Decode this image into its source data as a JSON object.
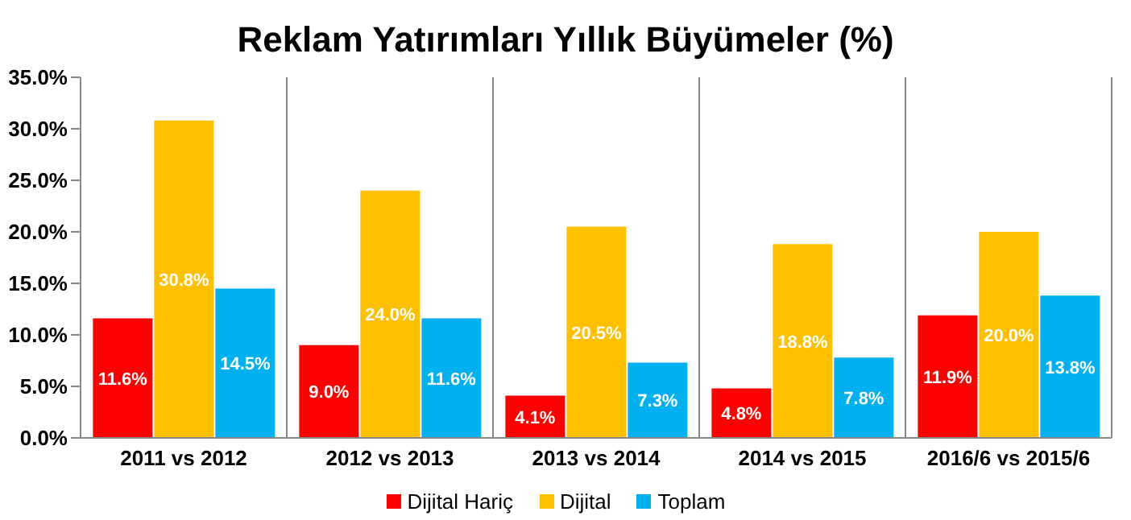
{
  "chart_data": {
    "type": "bar",
    "title": "Reklam Yatırımları Yıllık Büyümeler (%)",
    "categories": [
      "2011 vs 2012",
      "2012 vs 2013",
      "2013 vs 2014",
      "2014 vs 2015",
      "2016/6 vs 2015/6"
    ],
    "series": [
      {
        "name": "Dijital Hariç",
        "color": "#ff0000",
        "values": [
          11.6,
          9.0,
          4.1,
          4.8,
          11.9
        ],
        "value_labels": [
          "11.6%",
          "9.0%",
          "4.1%",
          "4.8%",
          "11.9%"
        ]
      },
      {
        "name": "Dijital",
        "color": "#ffc000",
        "values": [
          30.8,
          24.0,
          20.5,
          18.8,
          20.0
        ],
        "value_labels": [
          "30.8%",
          "24.0%",
          "20.5%",
          "18.8%",
          "20.0%"
        ]
      },
      {
        "name": "Toplam",
        "color": "#00b0f0",
        "values": [
          14.5,
          11.6,
          7.3,
          7.8,
          13.8
        ],
        "value_labels": [
          "14.5%",
          "11.6%",
          "7.3%",
          "7.8%",
          "13.8%"
        ]
      }
    ],
    "ylim": [
      0,
      35
    ],
    "yticks": [
      {
        "value": 0,
        "label": "0.0%"
      },
      {
        "value": 5,
        "label": "5.0%"
      },
      {
        "value": 10,
        "label": "10.0%"
      },
      {
        "value": 15,
        "label": "15.0%"
      },
      {
        "value": 20,
        "label": "20.0%"
      },
      {
        "value": 25,
        "label": "25.0%"
      },
      {
        "value": 30,
        "label": "30.0%"
      },
      {
        "value": 35,
        "label": "35.0%"
      }
    ],
    "grid": "x",
    "legend": "bottom"
  }
}
